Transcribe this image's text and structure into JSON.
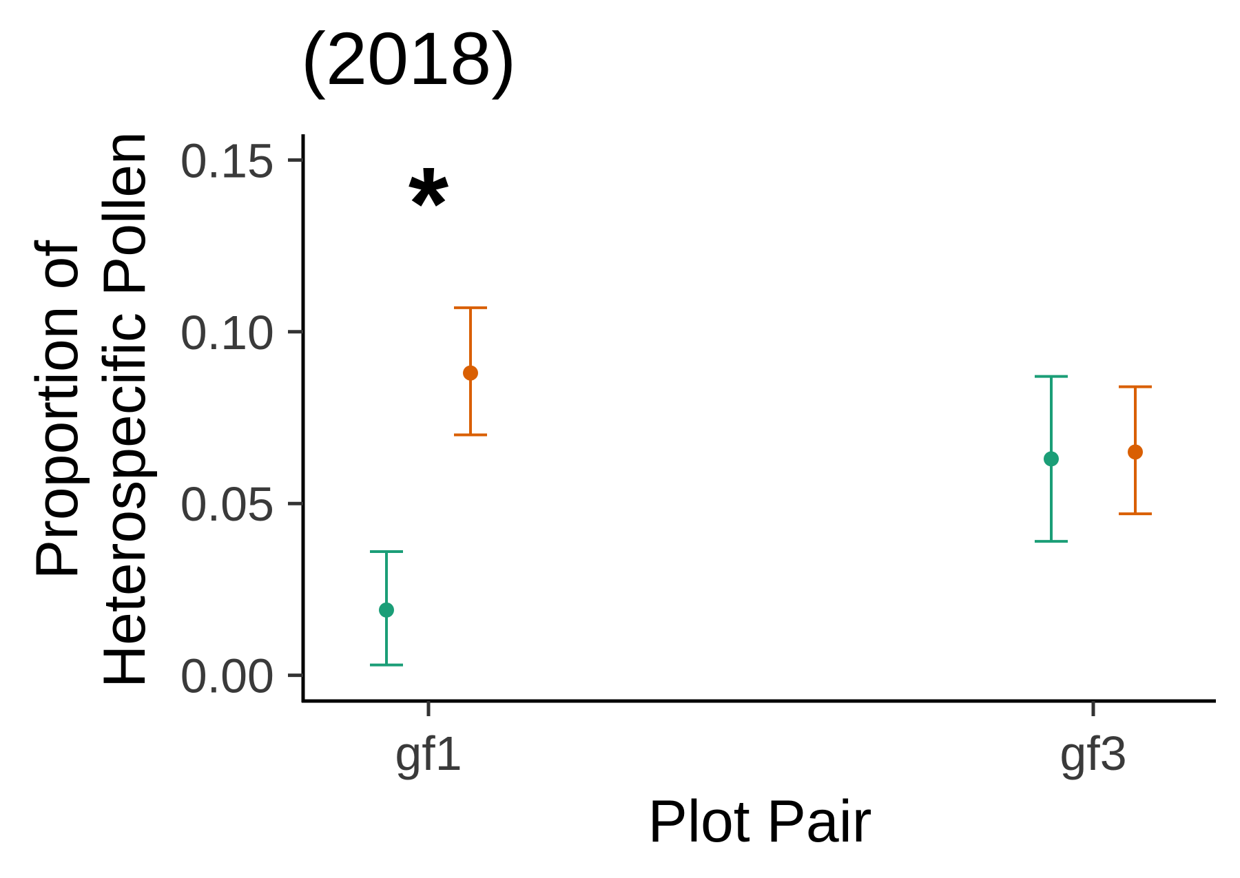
{
  "chart_data": {
    "type": "errorbar",
    "title": "(2018)",
    "xlabel": "Plot Pair",
    "ylabel_lines": [
      "Proportion of",
      "Heterospecific Pollen"
    ],
    "categories": [
      "gf1",
      "gf3"
    ],
    "ylim": [
      -0.0075,
      0.1575
    ],
    "yticks": [
      0.0,
      0.05,
      0.1,
      0.15
    ],
    "ytick_labels": [
      "0.00",
      "0.05",
      "0.10",
      "0.15"
    ],
    "series": [
      {
        "name": "green",
        "color": "#1b9e77",
        "points": [
          {
            "category": "gf1",
            "y": 0.019,
            "ymin": 0.003,
            "ymax": 0.036
          },
          {
            "category": "gf3",
            "y": 0.063,
            "ymin": 0.039,
            "ymax": 0.087
          }
        ]
      },
      {
        "name": "orange",
        "color": "#d95f02",
        "points": [
          {
            "category": "gf1",
            "y": 0.088,
            "ymin": 0.07,
            "ymax": 0.107
          },
          {
            "category": "gf3",
            "y": 0.065,
            "ymin": 0.047,
            "ymax": 0.084
          }
        ]
      }
    ],
    "annotations": [
      {
        "text": "*",
        "category": "gf1",
        "y": 0.138
      }
    ],
    "grid": false,
    "legend": "none"
  }
}
